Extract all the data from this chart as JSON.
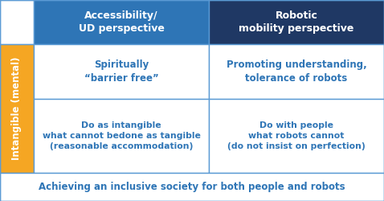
{
  "bg_color": "#ffffff",
  "header_left_color": "#2e75b6",
  "header_right_color": "#1f3864",
  "side_color": "#f5a623",
  "cell_bg": "#ffffff",
  "header_text_color": "#ffffff",
  "side_text_color": "#ffffff",
  "cell_text_color": "#2e75b6",
  "bottom_text_color": "#2e75b6",
  "grid_color": "#5b9bd5",
  "side_label": "Intangible (mental)",
  "col1_header": "Accessibility/\nUD perspective",
  "col2_header": "Robotic\nmobility perspective",
  "cell_top_left": "Spiritually\n“barrier free”",
  "cell_top_right": "Promoting understanding,\ntolerance of robots",
  "cell_bot_left": "Do as intangible\nwhat cannot bedone as tangible\n(reasonable accommodation)",
  "cell_bot_right": "Do with people\nwhat robots cannot\n(do not insist on perfection)",
  "bottom_text": "Achieving an inclusive society for both people and robots",
  "fig_width": 4.78,
  "fig_height": 2.5,
  "dpi": 100
}
